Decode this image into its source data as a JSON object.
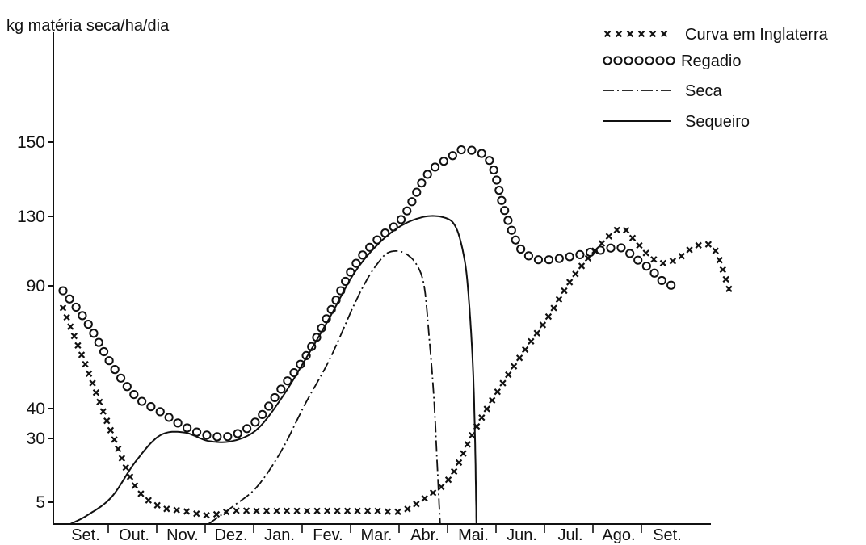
{
  "chart_data": {
    "type": "line",
    "ylabel": "kg matéria seca/ha/dia",
    "yticks": [
      5,
      30,
      40,
      90,
      130,
      150
    ],
    "months": [
      "Set.",
      "Out.",
      "Nov.",
      "Dez.",
      "Jan.",
      "Fev.",
      "Mar.",
      "Abr.",
      "Mai.",
      "Jun.",
      "Jul.",
      "Ago.",
      "Set."
    ],
    "legend_position": "top-right",
    "series": [
      {
        "name": "Curva em Inglaterra",
        "style": "x-markers",
        "points": [
          [
            0.0,
            81
          ],
          [
            0.5,
            56
          ],
          [
            1.0,
            32
          ],
          [
            1.5,
            11
          ],
          [
            2.0,
            4
          ],
          [
            2.5,
            3
          ],
          [
            3.0,
            2
          ],
          [
            3.5,
            3
          ],
          [
            4.0,
            3
          ],
          [
            4.5,
            3
          ],
          [
            5.0,
            3
          ],
          [
            5.5,
            3
          ],
          [
            6.0,
            3
          ],
          [
            6.5,
            3
          ],
          [
            7.0,
            3
          ],
          [
            7.5,
            7
          ],
          [
            8.0,
            15
          ],
          [
            8.5,
            33
          ],
          [
            9.0,
            48
          ],
          [
            9.5,
            63
          ],
          [
            10.0,
            77
          ],
          [
            10.5,
            94
          ],
          [
            11.0,
            111
          ],
          [
            11.5,
            123
          ],
          [
            11.8,
            116
          ],
          [
            12.1,
            107
          ],
          [
            12.4,
            103
          ],
          [
            12.7,
            106
          ],
          [
            13.0,
            112
          ],
          [
            13.3,
            114
          ],
          [
            13.5,
            108
          ],
          [
            13.8,
            85
          ]
        ]
      },
      {
        "name": "Regadio",
        "style": "o-markers",
        "points": [
          [
            0.0,
            88
          ],
          [
            0.5,
            75
          ],
          [
            1.0,
            58
          ],
          [
            1.5,
            45
          ],
          [
            2.0,
            39
          ],
          [
            2.5,
            34
          ],
          [
            3.0,
            31
          ],
          [
            3.5,
            31
          ],
          [
            4.0,
            36
          ],
          [
            4.5,
            48
          ],
          [
            5.0,
            61
          ],
          [
            5.5,
            79
          ],
          [
            6.0,
            101
          ],
          [
            6.5,
            117
          ],
          [
            7.0,
            129
          ],
          [
            7.5,
            141
          ],
          [
            8.0,
            146
          ],
          [
            8.3,
            148
          ],
          [
            8.8,
            145
          ],
          [
            9.1,
            132
          ],
          [
            9.4,
            113
          ],
          [
            9.7,
            106
          ],
          [
            10.0,
            105
          ],
          [
            10.5,
            107
          ],
          [
            11.0,
            110
          ],
          [
            11.5,
            112
          ],
          [
            11.8,
            106
          ],
          [
            12.1,
            100
          ],
          [
            12.4,
            92
          ],
          [
            12.6,
            90
          ]
        ]
      },
      {
        "name": "Seca",
        "style": "dash-dot",
        "points": [
          [
            3.0,
            0
          ],
          [
            3.5,
            4
          ],
          [
            4.0,
            11
          ],
          [
            4.5,
            25
          ],
          [
            5.0,
            42
          ],
          [
            5.5,
            60
          ],
          [
            6.0,
            82
          ],
          [
            6.3,
            95
          ],
          [
            6.55,
            105
          ],
          [
            6.7,
            109
          ],
          [
            6.9,
            110
          ],
          [
            7.1,
            108
          ],
          [
            7.3,
            102
          ],
          [
            7.45,
            90
          ],
          [
            7.55,
            70
          ],
          [
            7.65,
            45
          ],
          [
            7.72,
            20
          ],
          [
            7.78,
            0
          ]
        ]
      },
      {
        "name": "Sequeiro",
        "style": "solid",
        "points": [
          [
            0.15,
            0
          ],
          [
            0.5,
            2
          ],
          [
            1.0,
            7
          ],
          [
            1.5,
            21
          ],
          [
            2.0,
            31
          ],
          [
            2.5,
            32
          ],
          [
            3.0,
            29
          ],
          [
            3.5,
            29
          ],
          [
            4.0,
            33
          ],
          [
            4.5,
            44
          ],
          [
            5.0,
            60
          ],
          [
            5.5,
            77
          ],
          [
            6.0,
            97
          ],
          [
            6.5,
            114
          ],
          [
            7.0,
            125
          ],
          [
            7.5,
            130
          ],
          [
            7.9,
            129
          ],
          [
            8.1,
            124
          ],
          [
            8.25,
            110
          ],
          [
            8.35,
            90
          ],
          [
            8.45,
            60
          ],
          [
            8.5,
            30
          ],
          [
            8.53,
            0
          ]
        ]
      }
    ]
  }
}
